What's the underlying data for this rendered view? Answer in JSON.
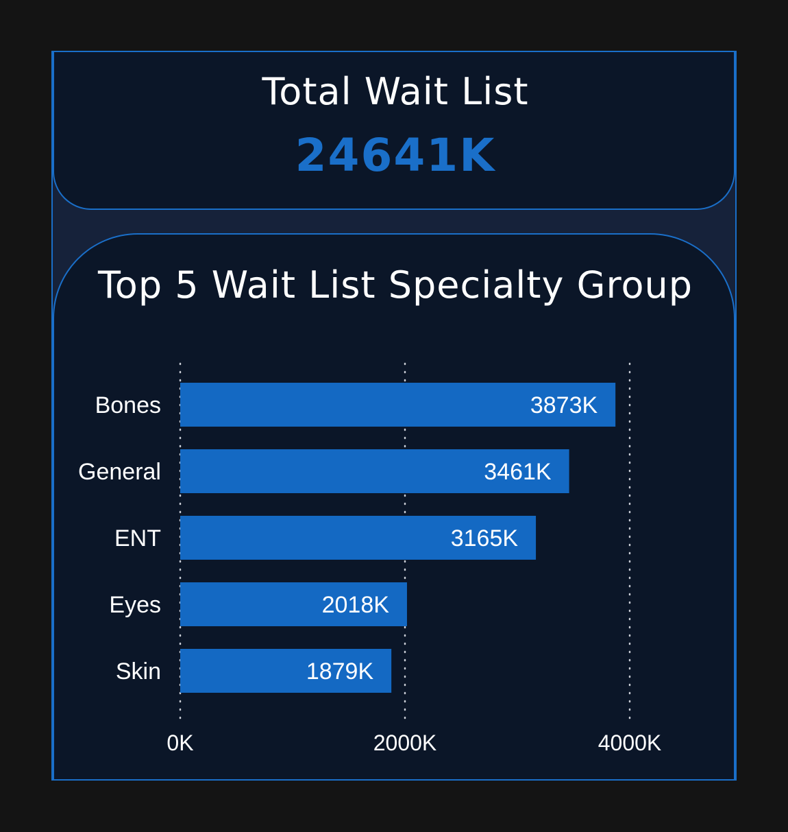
{
  "kpi": {
    "title": "Total Wait List",
    "value": "24641K"
  },
  "colors": {
    "background": "#141414",
    "card": "#0b1628",
    "frame": "#16223a",
    "accent": "#1a6fc9",
    "bar": "#1469c3",
    "text": "#ffffff"
  },
  "chart_data": {
    "type": "bar",
    "orientation": "horizontal",
    "title": "Top 5 Wait List Specialty Group",
    "categories": [
      "Bones",
      "General",
      "ENT",
      "Eyes",
      "Skin"
    ],
    "values": [
      3873,
      3461,
      3165,
      2018,
      1879
    ],
    "value_labels": [
      "3873K",
      "3461K",
      "3165K",
      "2018K",
      "1879K"
    ],
    "xlim": [
      0,
      4000
    ],
    "x_ticks": [
      0,
      2000,
      4000
    ],
    "x_tick_labels": [
      "0K",
      "2000K",
      "4000K"
    ],
    "xlabel": "",
    "ylabel": "",
    "grid": true,
    "legend": false
  }
}
